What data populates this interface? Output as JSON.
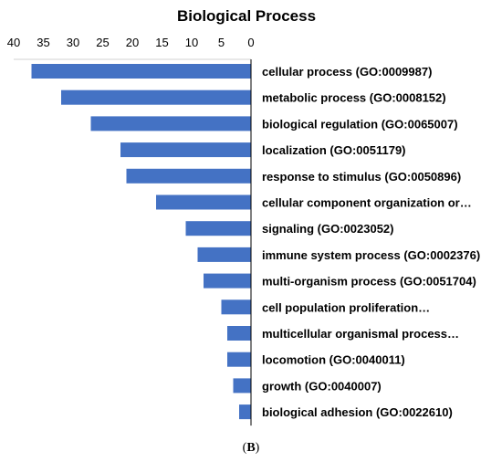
{
  "caption": {
    "open": "(",
    "letter": "B",
    "close": ")"
  },
  "chart_data": {
    "type": "bar",
    "orientation": "horizontal",
    "x_direction": "reversed",
    "title": "Biological Process",
    "xlim": [
      0,
      40
    ],
    "x_ticks": [
      40,
      35,
      30,
      25,
      20,
      15,
      10,
      5,
      0
    ],
    "bar_color": "#4472C4",
    "grid": false,
    "legend": "none",
    "categories": [
      "cellular process (GO:0009987)",
      "metabolic process (GO:0008152)",
      "biological regulation (GO:0065007)",
      "localization (GO:0051179)",
      "response to stimulus (GO:0050896)",
      "cellular component organization or…",
      "signaling (GO:0023052)",
      "immune system process (GO:0002376)",
      "multi-organism process (GO:0051704)",
      "cell population proliferation…",
      "multicellular organismal process…",
      "locomotion (GO:0040011)",
      "growth (GO:0040007)",
      "biological adhesion (GO:0022610)"
    ],
    "values": [
      37,
      32,
      27,
      22,
      21,
      16,
      11,
      9,
      8,
      5,
      4,
      4,
      3,
      2
    ]
  }
}
